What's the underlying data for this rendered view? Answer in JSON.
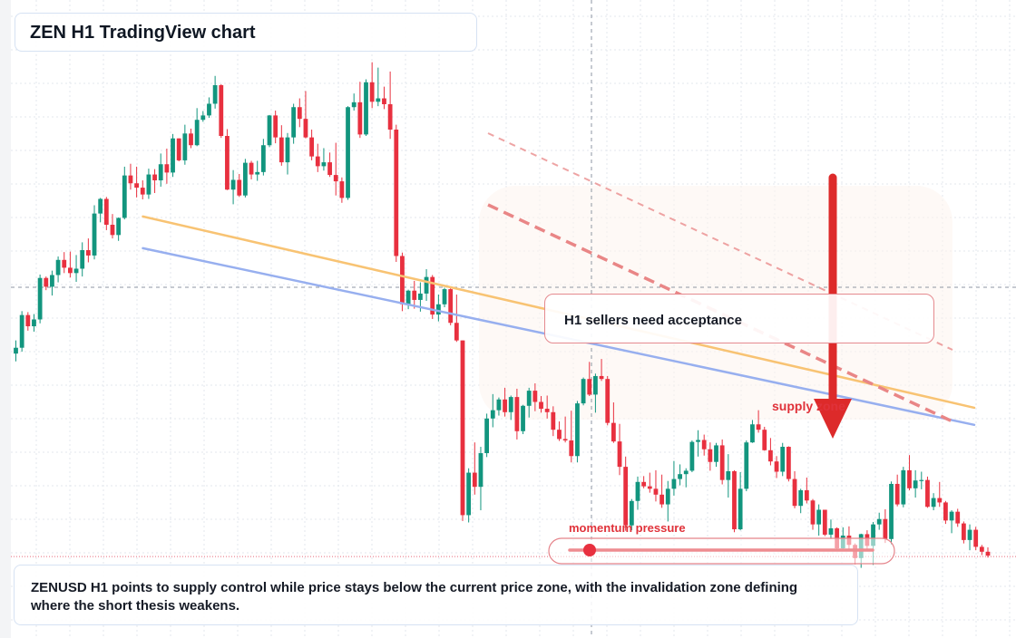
{
  "header": {
    "title": "ZEN H1 TradingView chart"
  },
  "annotations": {
    "callout": "H1 sellers need acceptance",
    "supply_label": "supply zone",
    "momentum_label": "momentum pressure"
  },
  "caption": "ZENUSD H1 points to supply control while price stays below the current price zone, with the invalidation zone defining where the short thesis weakens.",
  "colors": {
    "up": "#12957e",
    "down": "#e8303f",
    "ema_fast": "#f8c373",
    "ema_slow": "#97afef",
    "arrow": "#dd2a2a",
    "dashed_line": "#e98686",
    "grid": "#e3e7ed"
  },
  "chart_data": {
    "type": "candlestick",
    "title": "",
    "timeframe": "H1",
    "grid": true,
    "ylim": [
      0,
      100
    ],
    "candles": [
      [
        42.4,
        45.1,
        40.8,
        43.6
      ],
      [
        43.6,
        51.1,
        42.8,
        50.3
      ],
      [
        50.3,
        50.9,
        47.1,
        48.0
      ],
      [
        48.0,
        50.5,
        46.9,
        49.4
      ],
      [
        49.4,
        58.6,
        48.6,
        57.9
      ],
      [
        57.9,
        58.2,
        55.4,
        56.1
      ],
      [
        56.1,
        59.4,
        54.3,
        58.5
      ],
      [
        58.5,
        62.3,
        57.0,
        61.6
      ],
      [
        61.6,
        63.2,
        58.9,
        60.0
      ],
      [
        60.0,
        63.3,
        58.0,
        58.9
      ],
      [
        58.9,
        62.6,
        57.1,
        59.8
      ],
      [
        59.8,
        65.2,
        58.2,
        63.6
      ],
      [
        63.6,
        66.0,
        61.1,
        62.5
      ],
      [
        62.5,
        72.8,
        61.7,
        71.1
      ],
      [
        71.1,
        74.3,
        69.3,
        74.1
      ],
      [
        74.1,
        74.5,
        67.7,
        68.8
      ],
      [
        68.8,
        71.0,
        66.0,
        66.7
      ],
      [
        66.7,
        70.3,
        65.5,
        70.2
      ],
      [
        70.2,
        80.7,
        69.9,
        78.9
      ],
      [
        78.9,
        81.3,
        76.0,
        77.3
      ],
      [
        77.3,
        80.7,
        74.4,
        76.4
      ],
      [
        76.4,
        77.9,
        74.0,
        75.0
      ],
      [
        75.0,
        80.3,
        74.1,
        79.1
      ],
      [
        79.1,
        80.2,
        75.3,
        77.9
      ],
      [
        77.9,
        83.4,
        76.6,
        81.2
      ],
      [
        81.2,
        84.4,
        77.2,
        79.5
      ],
      [
        79.5,
        87.4,
        78.6,
        86.5
      ],
      [
        86.5,
        86.5,
        81.8,
        82.0
      ],
      [
        82.0,
        89.3,
        81.1,
        87.5
      ],
      [
        87.5,
        88.5,
        84.5,
        85.1
      ],
      [
        85.1,
        92.7,
        84.9,
        90.3
      ],
      [
        90.3,
        92.1,
        89.9,
        91.2
      ],
      [
        91.2,
        94.9,
        90.7,
        93.6
      ],
      [
        93.6,
        99.3,
        92.6,
        97.4
      ],
      [
        97.4,
        97.6,
        86.6,
        87.0
      ],
      [
        87.0,
        88.4,
        75.9,
        76.0
      ],
      [
        76.0,
        80.0,
        73.0,
        78.0
      ],
      [
        78.0,
        79.2,
        74.5,
        74.8
      ],
      [
        74.8,
        82.3,
        74.4,
        81.5
      ],
      [
        81.5,
        81.9,
        78.1,
        79.1
      ],
      [
        79.1,
        81.9,
        77.8,
        79.6
      ],
      [
        79.6,
        86.4,
        78.9,
        85.1
      ],
      [
        85.1,
        91.3,
        84.7,
        91.2
      ],
      [
        91.2,
        92.2,
        85.5,
        86.7
      ],
      [
        86.7,
        89.2,
        80.9,
        81.6
      ],
      [
        81.6,
        87.6,
        79.1,
        86.7
      ],
      [
        86.7,
        93.6,
        85.4,
        92.9
      ],
      [
        92.9,
        94.7,
        88.8,
        90.5
      ],
      [
        90.5,
        96.2,
        86.5,
        86.7
      ],
      [
        86.7,
        88.3,
        82.0,
        82.8
      ],
      [
        82.8,
        85.4,
        79.6,
        80.8
      ],
      [
        80.8,
        84.5,
        79.9,
        81.6
      ],
      [
        81.6,
        83.6,
        78.6,
        79.0
      ],
      [
        79.0,
        85.6,
        74.8,
        77.7
      ],
      [
        77.7,
        78.5,
        73.3,
        74.3
      ],
      [
        74.3,
        93.1,
        73.9,
        92.9
      ],
      [
        92.9,
        95.7,
        92.2,
        93.9
      ],
      [
        93.9,
        98.1,
        86.6,
        87.3
      ],
      [
        87.3,
        98.6,
        87.0,
        98.0
      ],
      [
        98.0,
        102.1,
        92.7,
        94.0
      ],
      [
        94.0,
        101.0,
        93.1,
        94.7
      ],
      [
        94.7,
        97.1,
        92.5,
        93.5
      ],
      [
        93.5,
        100.2,
        86.4,
        88.3
      ],
      [
        88.3,
        89.3,
        61.2,
        62.4
      ],
      [
        62.4,
        63.1,
        51.1,
        52.5
      ],
      [
        52.5,
        55.5,
        51.5,
        55.3
      ],
      [
        55.3,
        57.3,
        51.6,
        53.4
      ],
      [
        53.4,
        57.0,
        51.0,
        54.7
      ],
      [
        54.7,
        59.7,
        53.2,
        58.1
      ],
      [
        58.1,
        58.5,
        49.5,
        50.4
      ],
      [
        50.4,
        54.5,
        49.0,
        52.5
      ],
      [
        52.5,
        55.9,
        51.9,
        55.6
      ],
      [
        55.6,
        55.9,
        48.2,
        48.7
      ],
      [
        48.7,
        54.5,
        44.8,
        45.1
      ],
      [
        45.1,
        45.1,
        8.1,
        9.3
      ],
      [
        9.3,
        18.9,
        7.8,
        18.0
      ],
      [
        18.0,
        24.2,
        13.5,
        15.1
      ],
      [
        15.1,
        23.3,
        10.3,
        22.0
      ],
      [
        22.0,
        30.1,
        21.2,
        29.1
      ],
      [
        29.1,
        34.1,
        27.3,
        30.8
      ],
      [
        30.8,
        33.4,
        29.7,
        33.0
      ],
      [
        33.0,
        35.4,
        29.5,
        30.4
      ],
      [
        30.4,
        33.8,
        28.8,
        33.5
      ],
      [
        33.5,
        35.2,
        24.8,
        26.5
      ],
      [
        26.5,
        31.9,
        25.9,
        31.7
      ],
      [
        31.7,
        35.4,
        29.3,
        34.8
      ],
      [
        34.8,
        36.3,
        30.6,
        32.5
      ],
      [
        32.5,
        33.7,
        30.3,
        31.1
      ],
      [
        31.1,
        33.8,
        29.1,
        30.4
      ],
      [
        30.4,
        31.6,
        25.5,
        26.8
      ],
      [
        26.8,
        28.5,
        24.5,
        24.9
      ],
      [
        24.9,
        29.5,
        24.2,
        24.6
      ],
      [
        24.6,
        30.7,
        20.1,
        21.4
      ],
      [
        21.4,
        32.7,
        20.1,
        32.2
      ],
      [
        32.2,
        37.5,
        31.8,
        37.2
      ],
      [
        37.2,
        40.7,
        33.7,
        34.0
      ],
      [
        34.0,
        38.3,
        30.3,
        37.8
      ],
      [
        37.8,
        41.3,
        36.8,
        37.2
      ],
      [
        37.2,
        37.8,
        27.7,
        28.2
      ],
      [
        28.2,
        32.4,
        24.1,
        24.4
      ],
      [
        24.4,
        28.0,
        17.5,
        19.2
      ],
      [
        19.2,
        21.3,
        6.1,
        7.2
      ],
      [
        7.2,
        12.6,
        6.2,
        12.2
      ],
      [
        12.2,
        17.2,
        10.4,
        16.1
      ],
      [
        16.1,
        17.3,
        14.8,
        15.2
      ],
      [
        15.2,
        18.0,
        13.9,
        14.7
      ],
      [
        14.7,
        18.5,
        12.1,
        13.5
      ],
      [
        13.5,
        17.6,
        10.8,
        11.5
      ],
      [
        11.5,
        16.3,
        8.0,
        14.7
      ],
      [
        14.7,
        20.4,
        13.3,
        16.7
      ],
      [
        16.7,
        19.7,
        15.4,
        17.7
      ],
      [
        17.7,
        18.9,
        15.0,
        18.4
      ],
      [
        18.4,
        24.6,
        18.1,
        24.3
      ],
      [
        24.3,
        26.7,
        21.3,
        24.7
      ],
      [
        24.7,
        25.8,
        21.5,
        22.8
      ],
      [
        22.8,
        24.2,
        18.4,
        20.2
      ],
      [
        20.2,
        24.1,
        19.2,
        23.6
      ],
      [
        23.6,
        24.8,
        15.6,
        16.5
      ],
      [
        16.5,
        21.8,
        12.9,
        18.3
      ],
      [
        18.3,
        18.5,
        5.8,
        6.4
      ],
      [
        6.4,
        18.1,
        6.2,
        14.7
      ],
      [
        14.7,
        24.6,
        14.2,
        24.2
      ],
      [
        24.2,
        28.8,
        24.1,
        27.9
      ],
      [
        27.9,
        30.8,
        26.2,
        26.8
      ],
      [
        26.8,
        27.4,
        22.5,
        22.6
      ],
      [
        22.6,
        25.1,
        19.5,
        20.3
      ],
      [
        20.3,
        21.4,
        16.9,
        18.2
      ],
      [
        18.2,
        24.1,
        17.3,
        23.3
      ],
      [
        23.3,
        23.4,
        16.2,
        16.7
      ],
      [
        16.7,
        18.3,
        10.7,
        11.2
      ],
      [
        11.2,
        14.7,
        9.7,
        14.4
      ],
      [
        14.4,
        17.0,
        11.7,
        12.3
      ],
      [
        12.3,
        12.6,
        6.3,
        7.4
      ],
      [
        7.4,
        11.5,
        5.1,
        10.4
      ],
      [
        10.4,
        10.4,
        5.0,
        5.3
      ],
      [
        5.3,
        8.4,
        4.4,
        6.6
      ],
      [
        6.6,
        6.8,
        2.3,
        2.5
      ],
      [
        2.5,
        6.8,
        1.9,
        5.1
      ],
      [
        5.1,
        7.0,
        2.2,
        3.2
      ],
      [
        3.2,
        3.5,
        -0.8,
        0.5
      ],
      [
        0.5,
        5.5,
        -1.5,
        5.4
      ],
      [
        5.4,
        6.2,
        2.2,
        3.0
      ],
      [
        3.0,
        7.9,
        -0.9,
        7.4
      ],
      [
        7.4,
        9.8,
        6.3,
        8.5
      ],
      [
        8.5,
        10.5,
        3.6,
        4.4
      ],
      [
        4.4,
        16.2,
        3.3,
        15.7
      ],
      [
        15.7,
        17.6,
        11.1,
        11.5
      ],
      [
        11.5,
        19.2,
        10.9,
        18.5
      ],
      [
        18.5,
        21.6,
        14.4,
        14.8
      ],
      [
        14.8,
        18.5,
        12.9,
        16.4
      ],
      [
        16.4,
        18.2,
        14.6,
        16.5
      ],
      [
        16.5,
        17.2,
        10.8,
        11.0
      ],
      [
        11.0,
        13.8,
        10.3,
        12.8
      ],
      [
        12.8,
        16.1,
        11.0,
        11.9
      ],
      [
        11.9,
        12.2,
        7.5,
        8.2
      ],
      [
        8.2,
        10.3,
        5.6,
        10.0
      ],
      [
        10.0,
        10.6,
        6.9,
        7.6
      ],
      [
        7.6,
        8.0,
        3.5,
        4.2
      ],
      [
        4.2,
        7.4,
        2.1,
        6.3
      ],
      [
        6.3,
        6.9,
        2.1,
        2.8
      ],
      [
        2.8,
        3.2,
        1.1,
        1.8
      ],
      [
        1.8,
        2.7,
        0.6,
        1.0
      ]
    ],
    "ema_fast": {
      "from": [
        0,
        70.5
      ],
      "to": [
        166,
        31.3
      ]
    },
    "ema_slow": {
      "from": [
        0,
        64.0
      ],
      "to": [
        166,
        27.8
      ]
    },
    "price_line": 56.0,
    "invalidation_level": 1.0
  }
}
